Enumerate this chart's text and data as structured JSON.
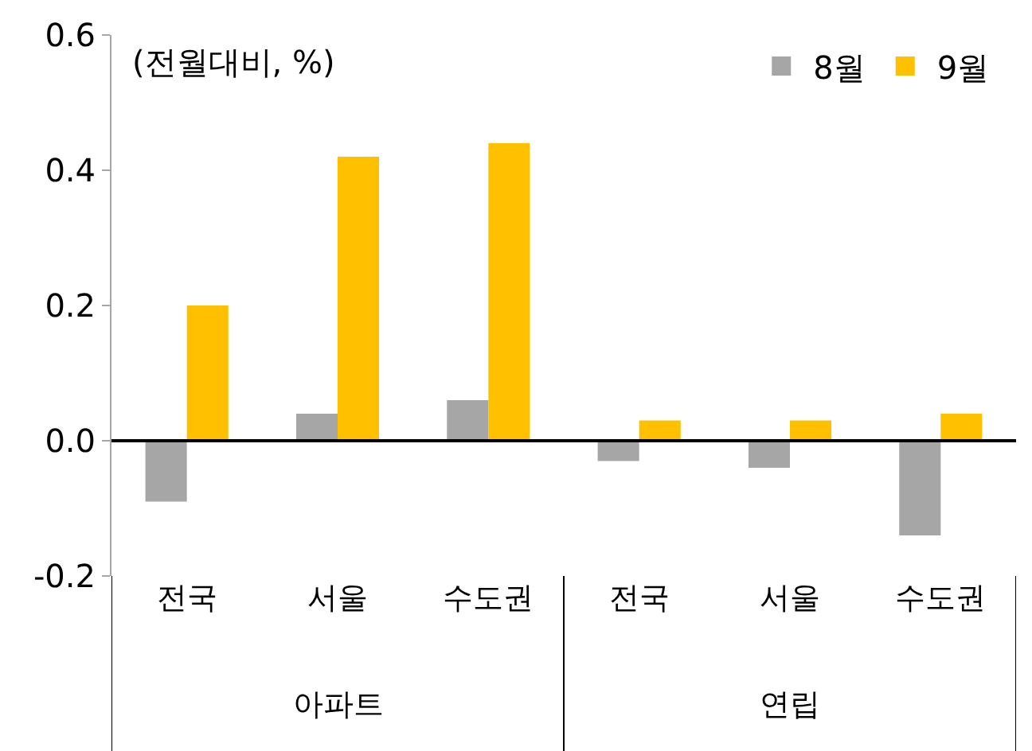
{
  "chart_data": {
    "type": "bar",
    "ylabel": "(전월대비, %)",
    "categories": [
      "전국",
      "서울",
      "수도권",
      "전국",
      "서울",
      "수도권"
    ],
    "series": [
      {
        "name": "8월",
        "color": "#a6a6a6",
        "values": [
          -0.09,
          0.04,
          0.06,
          -0.03,
          -0.04,
          -0.14
        ]
      },
      {
        "name": "9월",
        "color": "#ffc000",
        "values": [
          0.2,
          0.42,
          0.44,
          0.03,
          0.03,
          0.04
        ]
      }
    ],
    "annotations": [
      "아파트",
      "연립"
    ],
    "ylim": [
      -0.2,
      0.6
    ],
    "yticks": [
      {
        "value": -0.2,
        "label": "-0.2"
      },
      {
        "value": 0,
        "label": "0.0"
      },
      0.2,
      0.4,
      0.6
    ],
    "ref_lines": [
      {
        "axis": "y",
        "value": 0,
        "color": "#000000"
      }
    ],
    "legend": "top right"
  }
}
